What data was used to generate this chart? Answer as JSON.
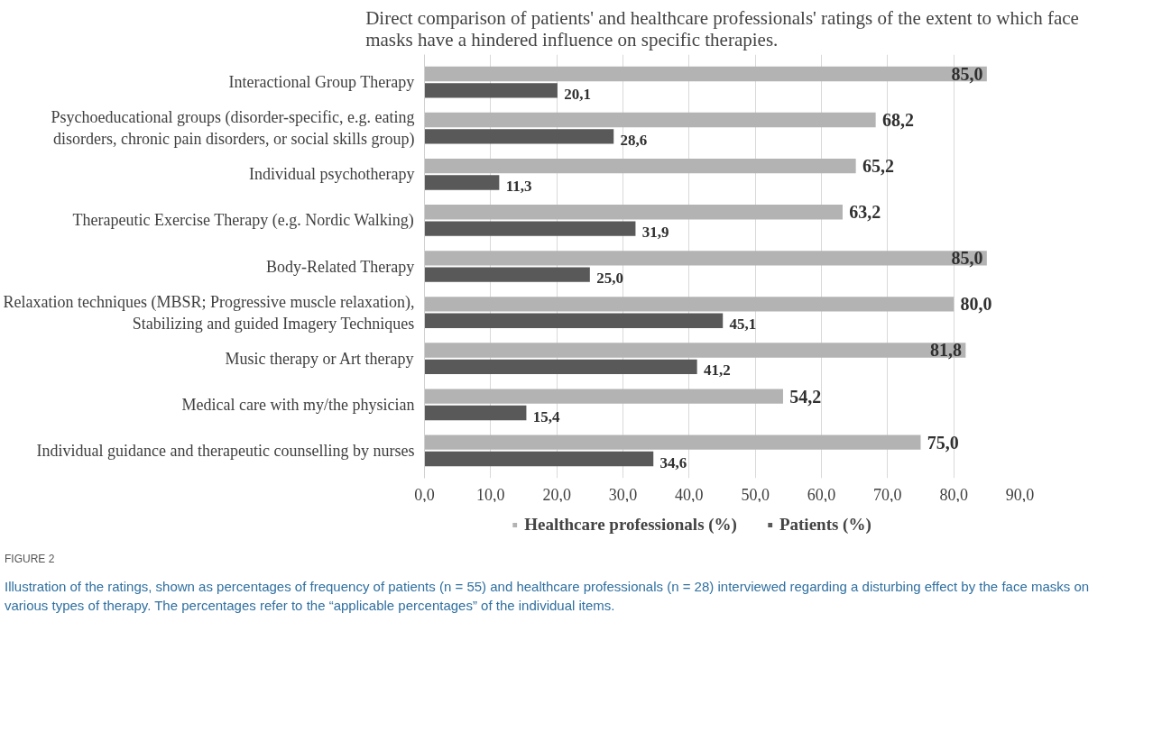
{
  "chart_data": {
    "type": "bar",
    "orientation": "horizontal",
    "title": "Direct comparison of patients' and healthcare professionals' ratings of the extent to which face\nmasks have a hindered influence on specific therapies.",
    "categories": [
      "Interactional Group Therapy",
      "Psychoeducational groups (disorder-specific, e.g. eating\ndisorders, chronic pain disorders, or social skills group)",
      "Individual psychotherapy",
      "Therapeutic Exercise Therapy (e.g. Nordic Walking)",
      "Body-Related Therapy",
      "Relaxation techniques (MBSR; Progressive muscle relaxation),\nStabilizing and guided Imagery Techniques",
      "Music therapy or Art therapy",
      "Medical care with my/the physician",
      "Individual guidance and therapeutic counselling by nurses"
    ],
    "series": [
      {
        "name": "Healthcare professionals (%)",
        "color": "#b3b3b3",
        "values": [
          85.0,
          68.2,
          65.2,
          63.2,
          85.0,
          80.0,
          81.8,
          54.2,
          75.0
        ],
        "value_labels": [
          "85,0",
          "68,2",
          "65,2",
          "63,2",
          "85,0",
          "80,0",
          "81,8",
          "54,2",
          "75,0"
        ]
      },
      {
        "name": "Patients (%)",
        "color": "#595959",
        "values": [
          20.1,
          28.6,
          11.3,
          31.9,
          25.0,
          45.1,
          41.2,
          15.4,
          34.6
        ],
        "value_labels": [
          "20,1",
          "28,6",
          "11,3",
          "31,9",
          "25,0",
          "45,1",
          "41,2",
          "15,4",
          "34,6"
        ]
      }
    ],
    "xlim": [
      0,
      90
    ],
    "xticks": [
      {
        "value": 0,
        "label": "0,0"
      },
      {
        "value": 10,
        "label": "10,0"
      },
      {
        "value": 20,
        "label": "20,0"
      },
      {
        "value": 30,
        "label": "30,0"
      },
      {
        "value": 40,
        "label": "40,0"
      },
      {
        "value": 50,
        "label": "50,0"
      },
      {
        "value": 60,
        "label": "60,0"
      },
      {
        "value": 70,
        "label": "70,0"
      },
      {
        "value": 80,
        "label": "80,0"
      },
      {
        "value": 90,
        "label": "90,0"
      }
    ],
    "grid": "x",
    "legend": "bottom",
    "annotations": [
      "FIGURE 2",
      "Illustration of the ratings, shown as percentages of frequency of patients (n = 55) and healthcare professionals (n = 28) interviewed regarding a disturbing effect by the face masks on various types of therapy. The percentages refer to the “applicable percentages” of the individual items."
    ]
  }
}
